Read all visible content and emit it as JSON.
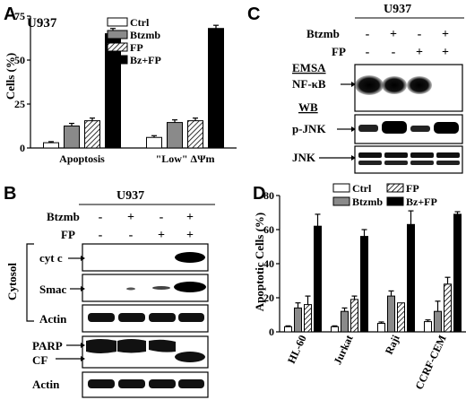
{
  "panels": {
    "A": {
      "letter": "A",
      "cell_line": "U937"
    },
    "B": {
      "letter": "B",
      "cell_line": "U937",
      "treat_rows": [
        {
          "label": "Btzmb",
          "signs": [
            "-",
            "+",
            "-",
            "+"
          ]
        },
        {
          "label": "FP",
          "signs": [
            "-",
            "-",
            "+",
            "+"
          ]
        }
      ],
      "section_label": "Cytosol",
      "blot_labels": {
        "cytc": "cyt c",
        "smac": "Smac",
        "actin1": "Actin",
        "parp": "PARP",
        "cf": "CF",
        "actin2": "Actin"
      }
    },
    "C": {
      "letter": "C",
      "cell_line": "U937",
      "treat_rows": [
        {
          "label": "Btzmb",
          "signs": [
            "-",
            "+",
            "-",
            "+"
          ]
        },
        {
          "label": "FP",
          "signs": [
            "-",
            "-",
            "+",
            "+"
          ]
        }
      ],
      "emsa_label": "EMSA",
      "wb_label": "WB",
      "blot_labels": {
        "nfkb": "NF-κB",
        "pjnk": "p-JNK",
        "jnk": "JNK"
      }
    },
    "D": {
      "letter": "D"
    }
  },
  "chart_data": [
    {
      "type": "bar",
      "panel": "A",
      "categories": [
        "Apoptosis",
        "\"Low\" ΔΨm"
      ],
      "series": [
        {
          "name": "Ctrl",
          "values": [
            3,
            6
          ],
          "errors": [
            0.6,
            1.0
          ]
        },
        {
          "name": "Btzmb",
          "values": [
            12.5,
            14.5
          ],
          "errors": [
            1.5,
            1.5
          ]
        },
        {
          "name": "FP",
          "values": [
            15.5,
            15.5
          ],
          "errors": [
            1.5,
            1.5
          ]
        },
        {
          "name": "Bz+FP",
          "values": [
            65,
            68
          ],
          "errors": [
            3,
            1.8
          ]
        }
      ],
      "ylabel": "Cells (%)",
      "ylim": [
        0,
        75
      ],
      "yticks": [
        0,
        25,
        50,
        75
      ],
      "legend": "top-left"
    },
    {
      "type": "bar",
      "panel": "D",
      "categories": [
        "HL-60",
        "Jurkat",
        "Raji",
        "CCRF-CEM"
      ],
      "series": [
        {
          "name": "Ctrl",
          "values": [
            3,
            3,
            5,
            6
          ],
          "errors": [
            0.5,
            0.5,
            0.8,
            1
          ]
        },
        {
          "name": "Btzmb",
          "values": [
            14,
            12,
            21,
            12
          ],
          "errors": [
            3,
            2,
            3,
            6
          ]
        },
        {
          "name": "FP",
          "values": [
            16,
            19,
            17,
            28
          ],
          "errors": [
            5,
            2,
            0,
            4
          ]
        },
        {
          "name": "Bz+FP",
          "values": [
            62,
            56,
            63,
            69
          ],
          "errors": [
            7,
            4,
            8,
            1.5
          ]
        }
      ],
      "ylabel": "Apoptotic Cells (%)",
      "ylim": [
        0,
        80
      ],
      "yticks": [
        0,
        20,
        40,
        60,
        80
      ],
      "legend": "top-left"
    }
  ],
  "colors": {
    "Ctrl": "#ffffff",
    "Btzmb": "#8a8a8a",
    "FP": "hatch",
    "Bz+FP": "#000000"
  }
}
